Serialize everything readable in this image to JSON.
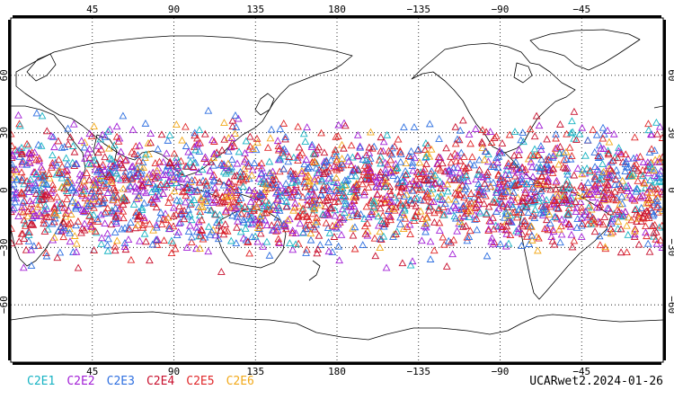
{
  "map": {
    "projection": "cylindrical-equidistant",
    "lon_range": [
      0,
      360
    ],
    "lat_range": [
      -90,
      90
    ],
    "grid": "dotted",
    "lon_ticks": [
      "45",
      "90",
      "135",
      "180",
      "−135",
      "−90",
      "−45"
    ],
    "lat_ticks": [
      "60",
      "30",
      "0",
      "−30",
      "−60"
    ],
    "lon_tick_values": [
      45,
      90,
      135,
      180,
      225,
      270,
      315
    ],
    "lat_tick_values": [
      60,
      30,
      0,
      -30,
      -60
    ],
    "marker": "open-triangle",
    "observation_band_lat": [
      -45,
      45
    ]
  },
  "legend": [
    {
      "name": "C2E1",
      "color": "#17b3c3"
    },
    {
      "name": "C2E2",
      "color": "#a21fd6"
    },
    {
      "name": "C2E3",
      "color": "#2e6fe0"
    },
    {
      "name": "C2E4",
      "color": "#c8102e"
    },
    {
      "name": "C2E5",
      "color": "#e0282a"
    },
    {
      "name": "C2E6",
      "color": "#f2a91a"
    }
  ],
  "caption": "UCARwet2.2024-01-26"
}
